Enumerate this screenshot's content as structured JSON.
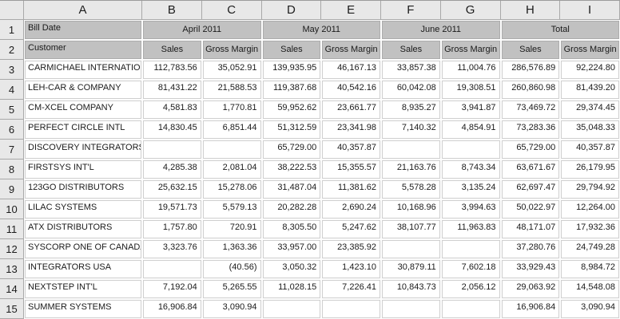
{
  "sheet": {
    "corner": "",
    "column_letters": [
      "A",
      "B",
      "C",
      "D",
      "E",
      "F",
      "G",
      "H",
      "I"
    ],
    "row_numbers": [
      "1",
      "2",
      "3",
      "4",
      "5",
      "6",
      "7",
      "8",
      "9",
      "10",
      "11",
      "12",
      "13",
      "14",
      "15"
    ],
    "pivot": {
      "row_field_label": "Bill Date",
      "column_field_label": "Customer",
      "groups": [
        "April 2011",
        "May 2011",
        "June 2011",
        "Total"
      ],
      "subheaders": [
        "Sales",
        "Gross Margin",
        "Sales",
        "Gross Margin",
        "Sales",
        "Gross Margin",
        "Sales",
        "Gross Margin"
      ]
    },
    "rows": [
      {
        "customer": "CARMICHAEL INTERNATIONAL",
        "values": [
          "112,783.56",
          "35,052.91",
          "139,935.95",
          "46,167.13",
          "33,857.38",
          "11,004.76",
          "286,576.89",
          "92,224.80"
        ]
      },
      {
        "customer": "LEH-CAR & COMPANY",
        "values": [
          "81,431.22",
          "21,588.53",
          "119,387.68",
          "40,542.16",
          "60,042.08",
          "19,308.51",
          "260,860.98",
          "81,439.20"
        ]
      },
      {
        "customer": "CM-XCEL COMPANY",
        "values": [
          "4,581.83",
          "1,770.81",
          "59,952.62",
          "23,661.77",
          "8,935.27",
          "3,941.87",
          "73,469.72",
          "29,374.45"
        ]
      },
      {
        "customer": "PERFECT CIRCLE INTL",
        "values": [
          "14,830.45",
          "6,851.44",
          "51,312.59",
          "23,341.98",
          "7,140.32",
          "4,854.91",
          "73,283.36",
          "35,048.33"
        ]
      },
      {
        "customer": "DISCOVERY INTEGRATORS",
        "values": [
          "",
          "",
          "65,729.00",
          "40,357.87",
          "",
          "",
          "65,729.00",
          "40,357.87"
        ]
      },
      {
        "customer": "FIRSTSYS INT'L",
        "values": [
          "4,285.38",
          "2,081.04",
          "38,222.53",
          "15,355.57",
          "21,163.76",
          "8,743.34",
          "63,671.67",
          "26,179.95"
        ]
      },
      {
        "customer": "123GO DISTRIBUTORS",
        "values": [
          "25,632.15",
          "15,278.06",
          "31,487.04",
          "11,381.62",
          "5,578.28",
          "3,135.24",
          "62,697.47",
          "29,794.92"
        ]
      },
      {
        "customer": "LILAC SYSTEMS",
        "values": [
          "19,571.73",
          "5,579.13",
          "20,282.28",
          "2,690.24",
          "10,168.96",
          "3,994.63",
          "50,022.97",
          "12,264.00"
        ]
      },
      {
        "customer": "ATX DISTRIBUTORS",
        "values": [
          "1,757.80",
          "720.91",
          "8,305.50",
          "5,247.62",
          "38,107.77",
          "11,963.83",
          "48,171.07",
          "17,932.36"
        ]
      },
      {
        "customer": "SYSCORP ONE OF CANADA",
        "values": [
          "3,323.76",
          "1,363.36",
          "33,957.00",
          "23,385.92",
          "",
          "",
          "37,280.76",
          "24,749.28"
        ]
      },
      {
        "customer": "INTEGRATORS USA",
        "values": [
          "",
          "(40.56)",
          "3,050.32",
          "1,423.10",
          "30,879.11",
          "7,602.18",
          "33,929.43",
          "8,984.72"
        ]
      },
      {
        "customer": "NEXTSTEP INT'L",
        "values": [
          "7,192.04",
          "5,265.55",
          "11,028.15",
          "7,226.41",
          "10,843.73",
          "2,056.12",
          "29,063.92",
          "14,548.08"
        ]
      },
      {
        "customer": "SUMMER SYSTEMS",
        "values": [
          "16,906.84",
          "3,090.94",
          "",
          "",
          "",
          "",
          "16,906.84",
          "3,090.94"
        ]
      }
    ]
  },
  "colors": {
    "pivot_header_fill": "#c1c1c1",
    "chrome_fill": "#e8e8e8",
    "chrome_border": "#a9a9a9",
    "grid_border": "#cfcfcf",
    "text": "#1a1a1a"
  }
}
